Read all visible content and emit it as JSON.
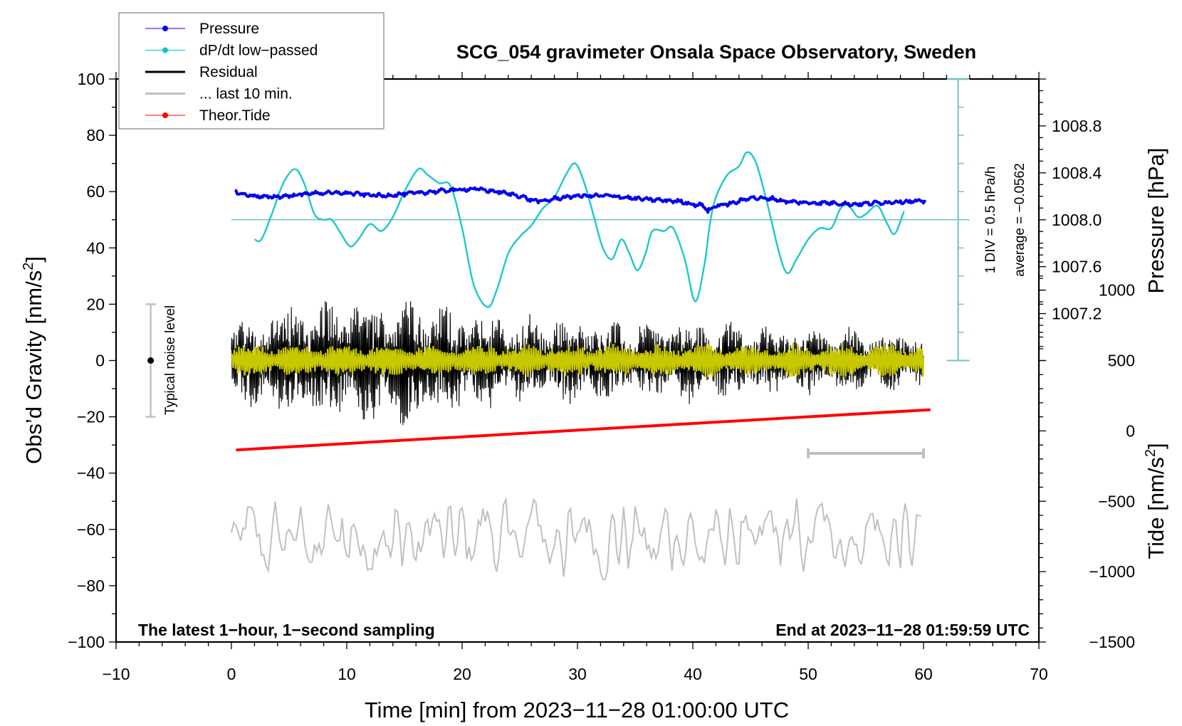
{
  "chart_data": {
    "type": "line",
    "title": "SCG_054 gravimeter Onsala Space Observatory, Sweden",
    "xlabel": "Time [min] from 2023−11−28 01:00:00 UTC",
    "ylabel_left": "Obs’d Gravity [nm/s",
    "ylabel_left_sup": "2",
    "ylabel_left_end": "]",
    "ylabel_right_pressure": "Pressure [hPa]",
    "ylabel_right_tide": "Tide [nm/s",
    "ylabel_right_tide_sup": "2",
    "ylabel_right_tide_end": "]",
    "xlim": [
      -10,
      70
    ],
    "ylim": [
      -100,
      100
    ],
    "x_ticks": [
      -10,
      0,
      10,
      20,
      30,
      40,
      50,
      60,
      70
    ],
    "x_tick_labels": [
      "−10",
      "0",
      "10",
      "20",
      "30",
      "40",
      "50",
      "60",
      "70"
    ],
    "y_ticks": [
      100,
      80,
      60,
      40,
      20,
      0,
      -20,
      -40,
      -60,
      -80,
      -100
    ],
    "y_tick_labels": [
      "100",
      "80",
      "60",
      "40",
      "20",
      "0",
      "−20",
      "−40",
      "−60",
      "−80",
      "−100"
    ],
    "pressure_axis": {
      "ticks": [
        1008.8,
        1008.4,
        1008.0,
        1007.6,
        1007.2
      ],
      "tick_labels": [
        "1008.8",
        "1008.4",
        "1008.0",
        "1007.6",
        "1007.2"
      ],
      "range": [
        1006.8,
        1009.2
      ],
      "gravity_span": [
        0,
        100
      ]
    },
    "tide_axis": {
      "ticks": [
        1000,
        500,
        0,
        -500,
        -1000,
        -1500
      ],
      "tick_labels": [
        "1000",
        "500",
        "0",
        "−500",
        "−1000",
        "−1500"
      ],
      "range": [
        -1500,
        1500
      ],
      "gravity_span": [
        -100,
        50
      ]
    },
    "dpdt_scale": {
      "label": "1 DIV = 0.5 hPa/h",
      "average_label": "average = −0.0562",
      "x": 63,
      "baseline_gravity": 50,
      "div_gravity_units": 10,
      "range_gravity": [
        0,
        100
      ]
    },
    "noise_bar": {
      "label": "Typical noise level",
      "x": -7,
      "range": [
        -20,
        20
      ],
      "center": 0
    },
    "last10_bar": {
      "x_range": [
        50,
        60
      ],
      "y": -33
    },
    "note_left": "The latest 1−hour, 1−second sampling",
    "note_right": "End at 2023−11−28 01:59:59 UTC",
    "legend": [
      {
        "label": "Pressure",
        "color": "#0000ff",
        "marker": true,
        "line": "thin"
      },
      {
        "label": "dP/dt low−passed",
        "color": "#00c8c8",
        "marker": true,
        "line": "thin"
      },
      {
        "label": "Residual",
        "color": "#000000",
        "marker": false,
        "line": "thick"
      },
      {
        "label": "... last 10 min.",
        "color": "#c0c0c0",
        "marker": false,
        "line": "thick"
      },
      {
        "label": "Theor.Tide",
        "color": "#ff0000",
        "marker": true,
        "line": "thin"
      }
    ],
    "colors": {
      "pressure": "#0000ee",
      "dpdt": "#1ec8c8",
      "dpdt_axis": "#6ec4c4",
      "residual": "#000000",
      "residual_lowpass": "#c8c800",
      "last10": "#c0c0c0",
      "tide": "#ff0000",
      "noise_bar": "#c0c0c0"
    },
    "series": [
      {
        "name": "Pressure",
        "units": "gravity-plot units (1008.0 hPa = 50)",
        "x": [
          0.3,
          1,
          3,
          5,
          7,
          10,
          13,
          16,
          19,
          21,
          23,
          25,
          26,
          27,
          28,
          30,
          31,
          33,
          35,
          37,
          39,
          40,
          41,
          41.3,
          42,
          43,
          44,
          45,
          46,
          47,
          48,
          50,
          52,
          54,
          56,
          58,
          60.3
        ],
        "y": [
          60,
          59,
          58,
          58.5,
          59.5,
          59.5,
          58.5,
          59.5,
          60.5,
          61,
          60,
          58.5,
          57,
          56.5,
          57.5,
          58.5,
          58.5,
          58.5,
          57.5,
          57,
          56.5,
          55.5,
          55,
          53,
          55,
          55.5,
          56.5,
          58,
          57.5,
          57.5,
          56.5,
          56,
          56,
          55.5,
          56,
          56.5,
          56.5
        ]
      },
      {
        "name": "dP/dt low-passed",
        "units": "gravity-plot units (0 hPa/h = 50, 1 div = 10 units = 0.5 hPa/h)",
        "x": [
          2,
          2.6,
          3.5,
          4.5,
          5.5,
          6.3,
          7.2,
          8,
          8.7,
          9.5,
          10.3,
          11,
          12,
          13,
          14,
          15,
          16.2,
          17,
          18,
          19,
          20,
          21,
          22.2,
          23,
          24,
          25,
          26,
          27,
          28,
          29,
          29.8,
          30.6,
          31.5,
          32.2,
          33,
          33.8,
          34.5,
          35.2,
          35.9,
          36.5,
          37.5,
          38.3,
          39.3,
          40.2,
          41,
          41.5,
          42,
          43,
          44,
          44.7,
          45.5,
          46.5,
          47.5,
          48.2,
          49,
          50,
          51,
          52,
          52.8,
          53.5,
          54.3,
          55,
          56,
          56.8,
          57.5,
          58.3
        ],
        "y": [
          43,
          43,
          52,
          63,
          68,
          63,
          52,
          50,
          50,
          45,
          40.5,
          43,
          48.5,
          46,
          51,
          60,
          68,
          66,
          63,
          62,
          47,
          27,
          19,
          25,
          38,
          44,
          48,
          54,
          58,
          66,
          70,
          63,
          50,
          40,
          36,
          43,
          38,
          32,
          38,
          46,
          46,
          47,
          36,
          21,
          34,
          49,
          58,
          66,
          69,
          74,
          70,
          55,
          38,
          31,
          36,
          43,
          47,
          47,
          54,
          55,
          51,
          52,
          55,
          49,
          45,
          53
        ]
      },
      {
        "name": "Residual",
        "units": "nm/s2",
        "x_range": [
          0,
          60
        ],
        "envelope_x": [
          0,
          5,
          10,
          15,
          20,
          25,
          30,
          35,
          40,
          45,
          50,
          55,
          60
        ],
        "envelope_amp": [
          12,
          17,
          18,
          19,
          15,
          13,
          13,
          11,
          12,
          10,
          10,
          9,
          8
        ]
      },
      {
        "name": "Residual low-passed",
        "units": "nm/s2",
        "x_range": [
          0,
          60
        ],
        "amplitude": 6
      },
      {
        "name": "... last 10 min.",
        "units": "nm/s2 (offset display)",
        "x_range": [
          0,
          60
        ],
        "center": -63,
        "amplitude": 10
      },
      {
        "name": "Theor.Tide",
        "units": "nm/s2 (tide axis)",
        "x": [
          0.5,
          60.5
        ],
        "y": [
          -135,
          150
        ]
      }
    ]
  }
}
